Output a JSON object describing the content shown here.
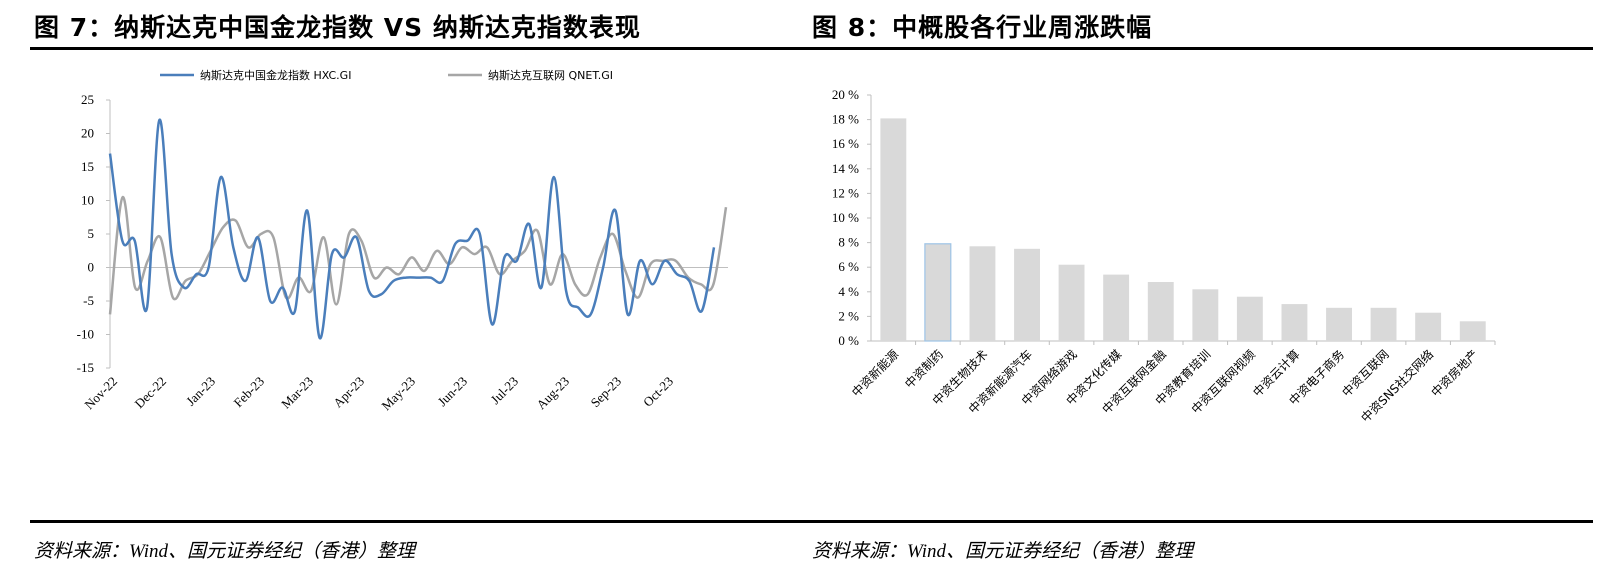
{
  "figures": {
    "left_title": "图 7：纳斯达克中国金龙指数 VS 纳斯达克指数表现",
    "right_title": "图 8：中概股各行业周涨跌幅",
    "left_source": "资料来源：Wind、国元证券经纪（香港）整理",
    "right_source": "资料来源：Wind、国元证券经纪（香港）整理"
  },
  "chart_data": [
    {
      "type": "line",
      "title": "",
      "xlabel": "",
      "ylabel": "",
      "ylim": [
        -15,
        25
      ],
      "yticks": [
        25,
        20,
        15,
        10,
        5,
        0,
        -5,
        -10,
        -15
      ],
      "xtick_labels": [
        "Nov-22",
        "Dec-22",
        "Jan-23",
        "Feb-23",
        "Mar-23",
        "Apr-23",
        "May-23",
        "Jun-23",
        "Jul-23",
        "Aug-23",
        "Sep-23",
        "Oct-23"
      ],
      "legend_position": "top",
      "grid": false,
      "series": [
        {
          "name": "纳斯达克中国金龙指数 HXC.GI",
          "color": "#4a7ebb",
          "values": [
            17,
            4,
            4,
            -6,
            22,
            2,
            -3,
            -1,
            0,
            13.5,
            3,
            -2,
            4.5,
            -5,
            -3,
            -6.5,
            8.5,
            -10.5,
            2,
            1.5,
            4.5,
            -3.5,
            -4,
            -2,
            -1.5,
            -1.5,
            -1.5,
            -2,
            3.5,
            4,
            5,
            -8.5,
            1.5,
            1,
            6.5,
            -3,
            13.5,
            -3.5,
            -6,
            -7,
            0,
            8.5,
            -7,
            1,
            -2.5,
            1,
            -1,
            -2,
            -6.5,
            3
          ]
        },
        {
          "name": "纳斯达克互联网 QNET.GI",
          "color": "#a6a6a6",
          "values": [
            -7,
            10.5,
            -3,
            1,
            4.5,
            -4.5,
            -2,
            -1,
            2.5,
            6,
            7,
            3,
            5,
            4.5,
            -4.5,
            -1.5,
            -3.5,
            4.5,
            -5.5,
            5,
            4,
            -1.5,
            0,
            -1,
            1.5,
            -0.5,
            2.5,
            0.5,
            3,
            2,
            3,
            -1,
            1,
            2.5,
            5.5,
            -2.5,
            2,
            -2.5,
            -4,
            1.5,
            5,
            -0.5,
            -4.5,
            0.5,
            1,
            1,
            -1.5,
            -2.5,
            -2.5,
            9
          ]
        }
      ]
    },
    {
      "type": "bar",
      "title": "",
      "xlabel": "",
      "ylabel": "",
      "ylim": [
        0,
        20
      ],
      "yticks": [
        "20 %",
        "18 %",
        "16 %",
        "14 %",
        "12 %",
        "10 %",
        "8 %",
        "6 %",
        "4 %",
        "2 %",
        "0 %"
      ],
      "categories": [
        "中资新能源",
        "中资制药",
        "中资生物技术",
        "中资新能源汽车",
        "中资网络游戏",
        "中资文化传媒",
        "中资互联网金融",
        "中资教育培训",
        "中资互联网视频",
        "中资云计算",
        "中资电子商务",
        "中资互联网",
        "中资SNS社交网络",
        "中资房地产"
      ],
      "values": [
        18.1,
        7.9,
        7.7,
        7.5,
        6.2,
        5.4,
        4.8,
        4.2,
        3.6,
        3.0,
        2.7,
        2.7,
        2.3,
        1.6
      ],
      "bar_color": "#d9d9d9",
      "highlight_index": 1,
      "highlight_edge": "#9dc3e6"
    }
  ]
}
